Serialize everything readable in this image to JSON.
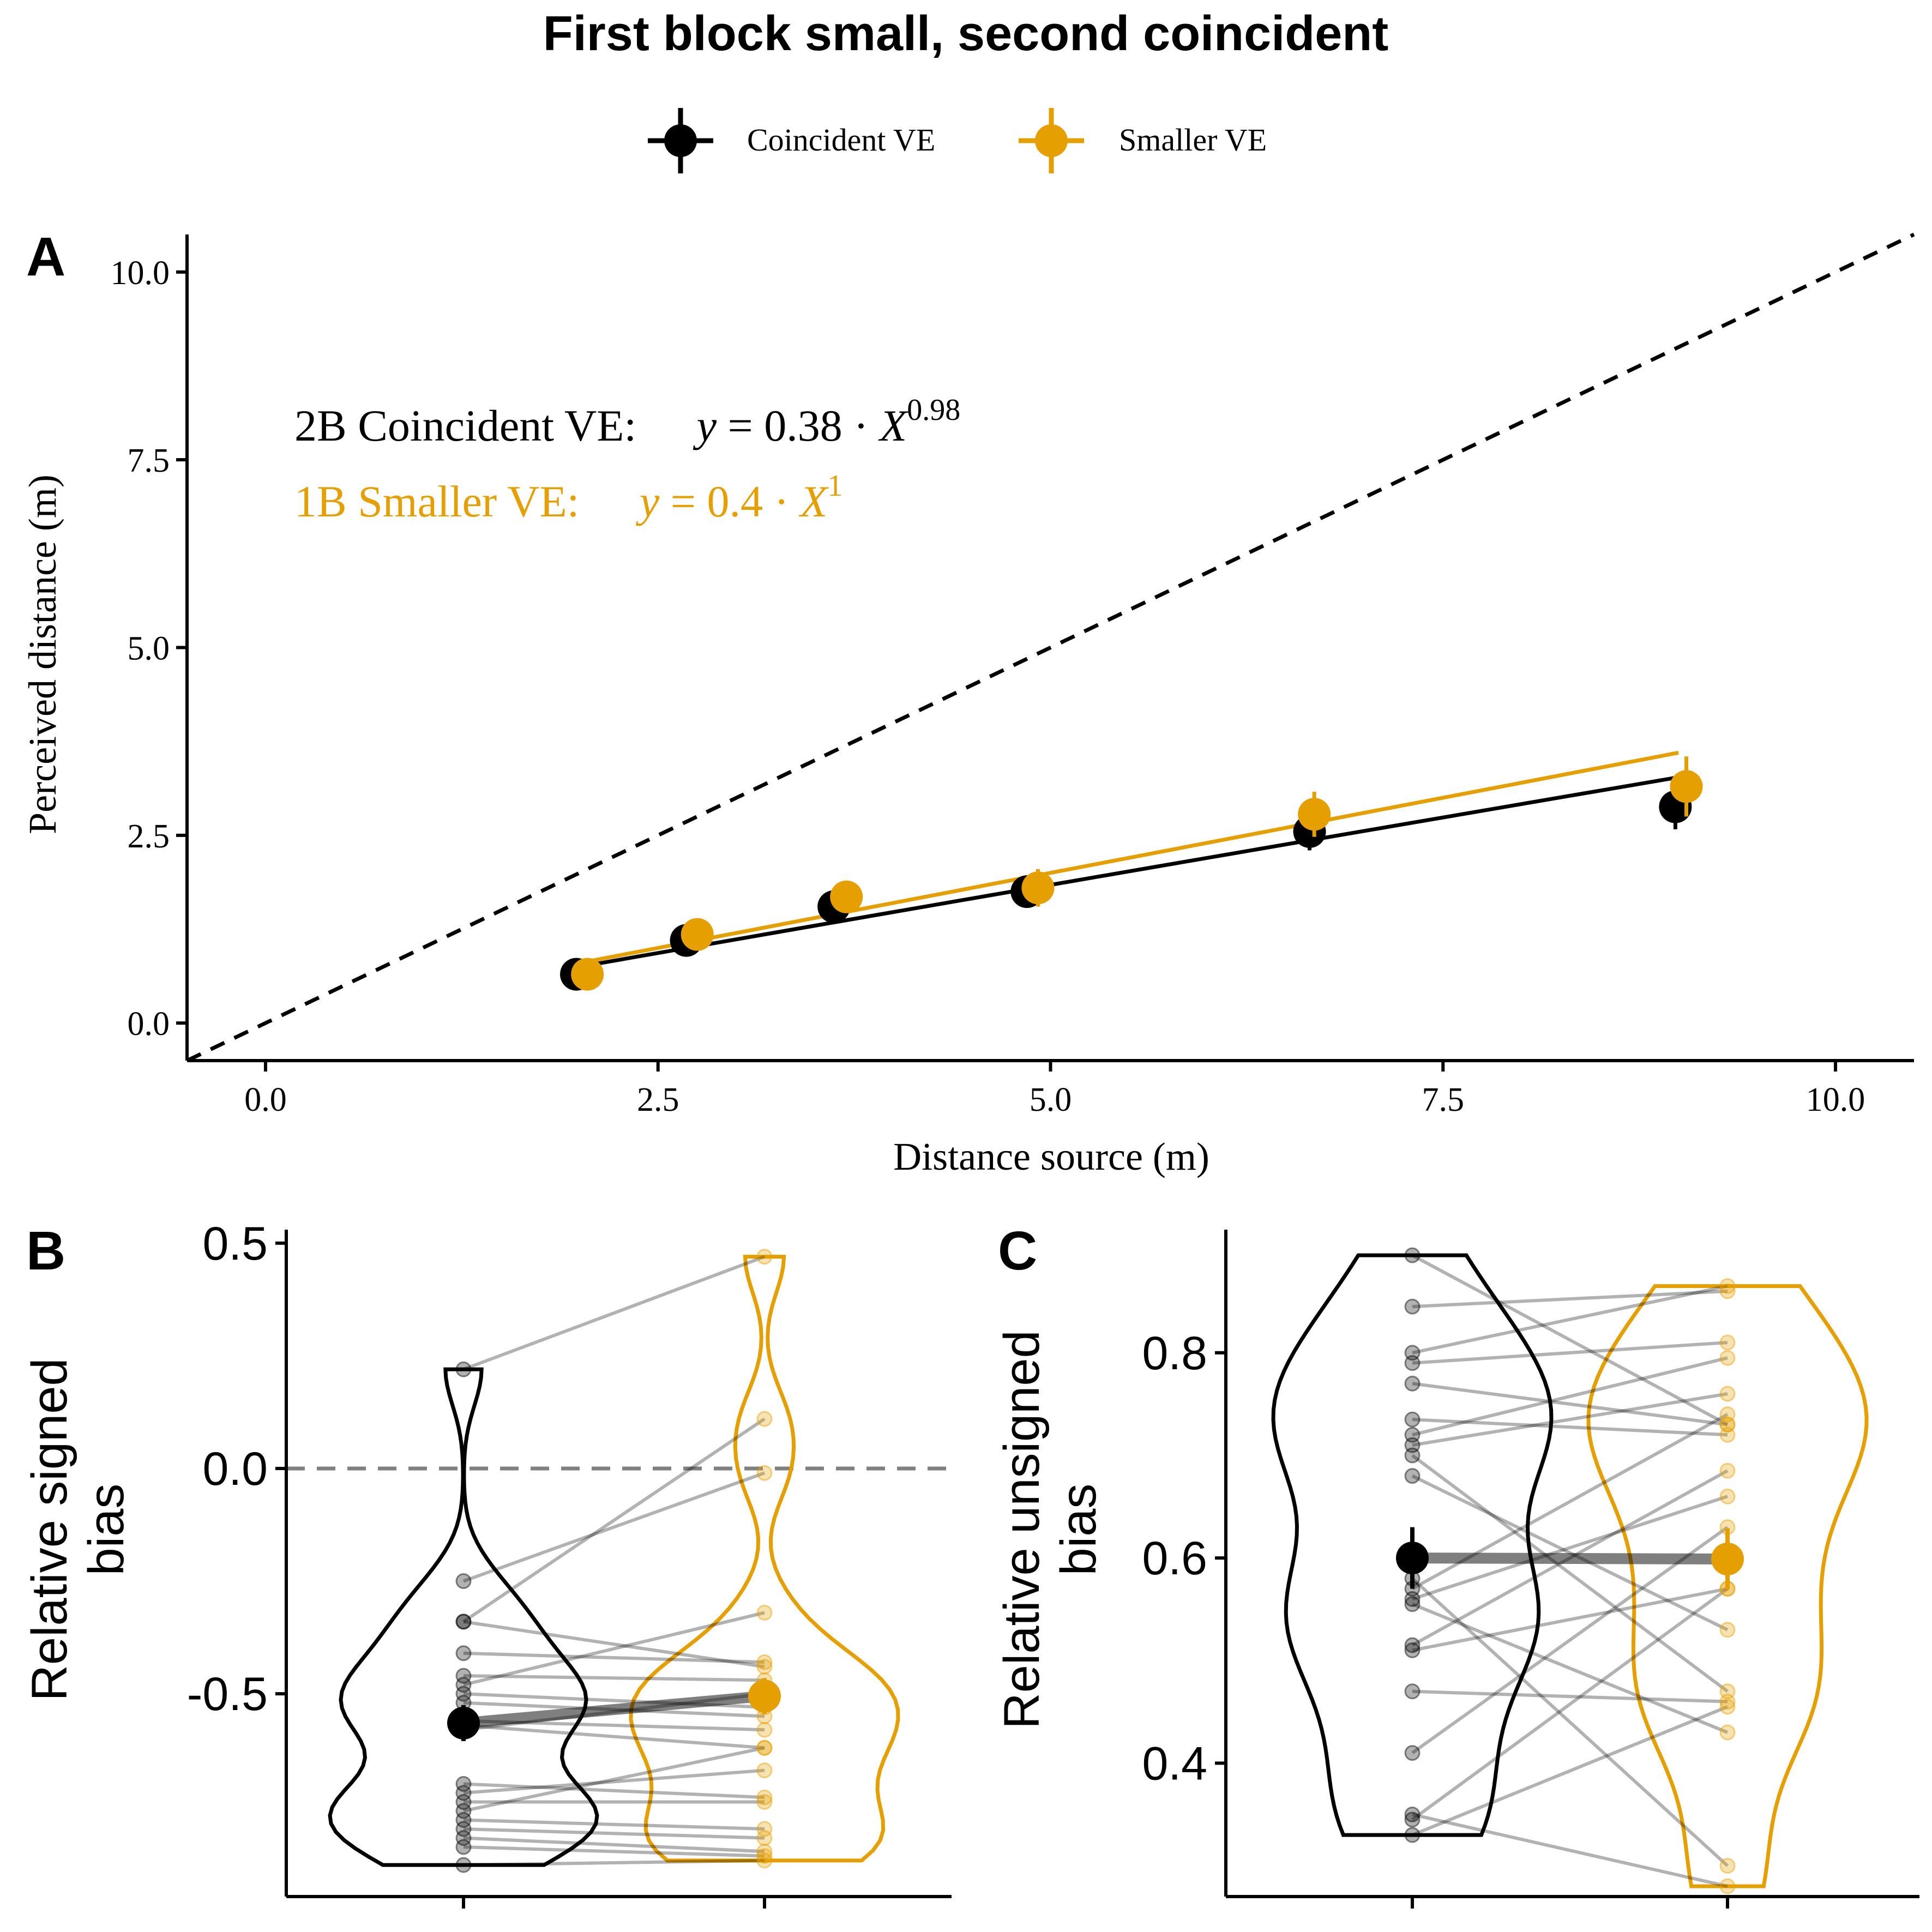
{
  "figure": {
    "title": "First block small, second coincident",
    "legend": {
      "placement": "top-center",
      "items": [
        {
          "label": "Coincident VE",
          "color": "#000000"
        },
        {
          "label": "Smaller VE",
          "color": "#E69F00"
        }
      ]
    }
  },
  "chart_data": [
    {
      "panel": "A",
      "type": "scatter",
      "xlabel": "Distance source (m)",
      "ylabel": "Perceived distance (m)",
      "xlim": [
        -0.5,
        10.5
      ],
      "ylim": [
        -0.5,
        10.5
      ],
      "xticks": [
        "0.0",
        "2.5",
        "5.0",
        "7.5",
        "10.0"
      ],
      "yticks": [
        "0.0",
        "2.5",
        "5.0",
        "7.5",
        "10.0"
      ],
      "identity_line": true,
      "annotations": [
        {
          "label": "2B Coincident VE:",
          "coef": "0.38",
          "exp": "0.98",
          "color": "#000000"
        },
        {
          "label": "1B Smaller VE:",
          "coef": "0.4",
          "exp": "1",
          "color": "#E69F00"
        }
      ],
      "series": [
        {
          "name": "Coincident VE",
          "color": "#000000",
          "x": [
            1.98,
            2.68,
            3.62,
            4.85,
            6.65,
            8.98
          ],
          "y": [
            0.65,
            1.1,
            1.55,
            1.75,
            2.55,
            2.88
          ],
          "err": [
            0.05,
            0.1,
            0.1,
            0.15,
            0.25,
            0.3
          ],
          "fit": {
            "coef": 0.38,
            "exp": 0.98,
            "x_range": [
              1.98,
              8.98
            ]
          }
        },
        {
          "name": "Smaller VE",
          "color": "#E69F00",
          "x": [
            2.05,
            2.75,
            3.7,
            4.92,
            6.68,
            9.05
          ],
          "y": [
            0.65,
            1.18,
            1.68,
            1.8,
            2.78,
            3.15
          ],
          "err": [
            0.05,
            0.1,
            0.2,
            0.25,
            0.3,
            0.4
          ],
          "fit": {
            "coef": 0.4,
            "exp": 1,
            "x_range": [
              2.05,
              9.0
            ]
          }
        }
      ]
    },
    {
      "panel": "B",
      "type": "violin",
      "ylabel": "Relative signed bias",
      "ylim": [
        -0.95,
        0.53
      ],
      "yticks": [
        0.5,
        0.0,
        -0.5
      ],
      "ytick_labels": [
        "0.5",
        "0.0",
        "-0.5"
      ],
      "reference_line": 0.0,
      "groups": [
        "Coincident VE",
        "Smaller VE"
      ],
      "means": [
        -0.565,
        -0.505
      ],
      "mean_err": [
        0.04,
        0.04
      ],
      "pairs": [
        [
          0.22,
          0.47
        ],
        [
          -0.25,
          -0.01
        ],
        [
          -0.34,
          0.11
        ],
        [
          -0.34,
          -0.44
        ],
        [
          -0.41,
          -0.43
        ],
        [
          -0.46,
          -0.47
        ],
        [
          -0.48,
          -0.32
        ],
        [
          -0.5,
          -0.53
        ],
        [
          -0.52,
          -0.55
        ],
        [
          -0.56,
          -0.58
        ],
        [
          -0.57,
          -0.62
        ],
        [
          -0.58,
          -0.5
        ],
        [
          -0.7,
          -0.73
        ],
        [
          -0.72,
          -0.67
        ],
        [
          -0.74,
          -0.74
        ],
        [
          -0.76,
          -0.62
        ],
        [
          -0.78,
          -0.8
        ],
        [
          -0.8,
          -0.82
        ],
        [
          -0.82,
          -0.85
        ],
        [
          -0.84,
          -0.86
        ],
        [
          -0.88,
          -0.87
        ]
      ]
    },
    {
      "panel": "C",
      "type": "violin",
      "ylabel": "Relative unsigned bias",
      "ylim": [
        0.27,
        0.92
      ],
      "yticks": [
        0.8,
        0.6,
        0.4
      ],
      "ytick_labels": [
        "0.8",
        "0.6",
        "0.4"
      ],
      "groups": [
        "Coincident VE",
        "Smaller VE"
      ],
      "means": [
        0.6,
        0.599
      ],
      "mean_err": [
        0.03,
        0.03
      ],
      "pairs": [
        [
          0.895,
          0.73
        ],
        [
          0.845,
          0.86
        ],
        [
          0.8,
          0.865
        ],
        [
          0.79,
          0.81
        ],
        [
          0.77,
          0.73
        ],
        [
          0.735,
          0.72
        ],
        [
          0.72,
          0.795
        ],
        [
          0.71,
          0.76
        ],
        [
          0.7,
          0.47
        ],
        [
          0.68,
          0.53
        ],
        [
          0.58,
          0.3
        ],
        [
          0.57,
          0.74
        ],
        [
          0.56,
          0.66
        ],
        [
          0.515,
          0.685
        ],
        [
          0.51,
          0.57
        ],
        [
          0.47,
          0.46
        ],
        [
          0.41,
          0.63
        ],
        [
          0.35,
          0.28
        ],
        [
          0.345,
          0.57
        ],
        [
          0.33,
          0.455
        ],
        [
          0.555,
          0.43
        ]
      ]
    }
  ],
  "panel_labels": [
    "A",
    "B",
    "C"
  ]
}
